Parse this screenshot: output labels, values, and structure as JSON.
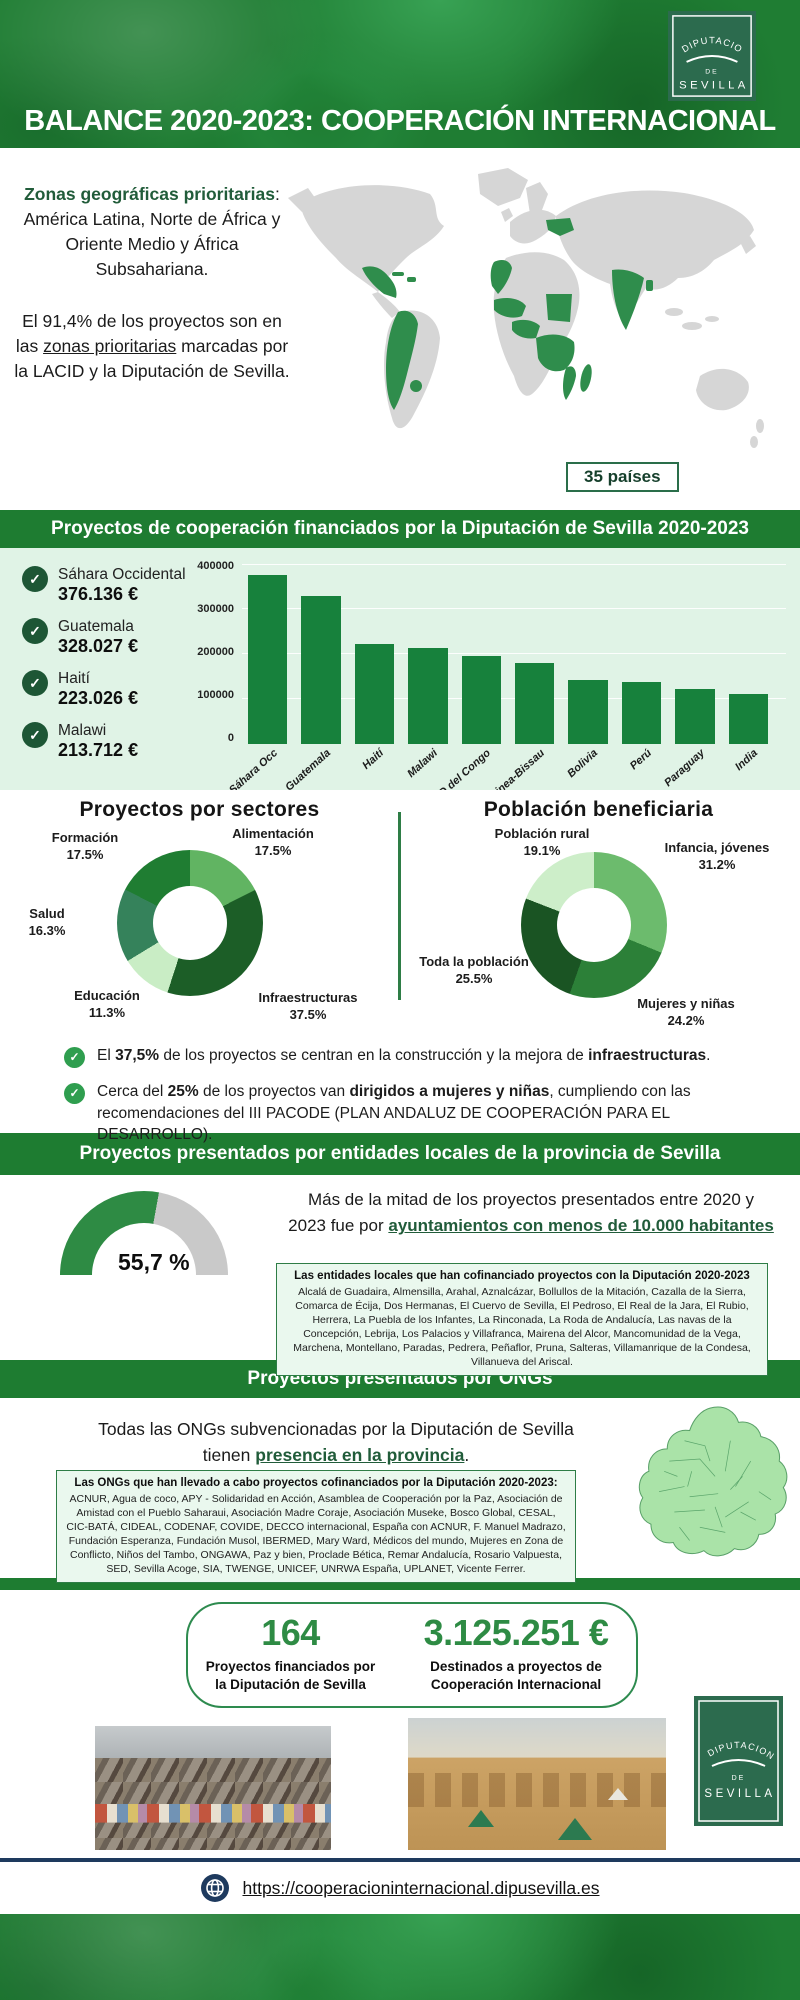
{
  "colors": {
    "accent": "#1e7c31",
    "accent_dark": "#1c5c3a",
    "text_green": "#215c3a",
    "mint": "#e0f3e6",
    "bar": "#17813c",
    "check_dark": "#1d5635",
    "check_bright": "#2f9e4f",
    "box_border": "#2e7d46",
    "box_bg": "#eaf8ee",
    "gauge": "#2e8b44",
    "gauge_track": "#c9c9c9",
    "navy": "#1e3a5e",
    "stat": "#2e8b44",
    "map_land": "#d6d6d6",
    "map_hl": "#2f8d4c",
    "logo_bg": "#2c6b4e"
  },
  "header": {
    "title": "BALANCE 2020-2023: COOPERACIÓN INTERNACIONAL",
    "logo": {
      "line1": "DIPUTACION",
      "line2": "DE",
      "line3": "SEVILLA"
    }
  },
  "map_section": {
    "paragraph1": [
      {
        "t": "Zonas geográficas prioritarias",
        "b": true,
        "g": true
      },
      {
        "t": ": América Latina, Norte de África y Oriente Medio y África Subsahariana."
      }
    ],
    "paragraph2": [
      {
        "t": "El 91,4% de los proyectos son en las "
      },
      {
        "t": "zonas prioritarias",
        "u": true
      },
      {
        "t": " marcadas por la LACID y la Diputación de Sevilla."
      }
    ],
    "badge": "35 países"
  },
  "sections": {
    "local_title": "Proyectos presentados por entidades locales de la provincia de Sevilla",
    "ongs_title": "Proyectos presentados por ONGs"
  },
  "funding": {
    "highlights": [
      {
        "country": "Sáhara Occidental",
        "amount": "376.136 €"
      },
      {
        "country": "Guatemala",
        "amount": "328.027 €"
      },
      {
        "country": "Haití",
        "amount": "223.026 €"
      },
      {
        "country": "Malawi",
        "amount": "213.712 €"
      }
    ]
  },
  "chart_data": [
    {
      "type": "bar",
      "title": "Proyectos de cooperación financiados por la Diputación de Sevilla 2020-2023",
      "categories": [
        "Sáhara Occ",
        "Guatemala",
        "Haití",
        "Malawi",
        "RD del Congo",
        "Guinea-Bissau",
        "Bolivia",
        "Perú",
        "Paraguay",
        "India"
      ],
      "values": [
        376136,
        328027,
        223026,
        213712,
        196000,
        181000,
        143000,
        137000,
        123000,
        111000
      ],
      "xlabel": "",
      "ylabel": "",
      "ylim": [
        0,
        400000
      ],
      "yticks": [
        400000,
        300000,
        200000,
        100000,
        0
      ],
      "grid": true,
      "bar_color": "#17813c"
    },
    {
      "type": "donut",
      "title": "Proyectos por sectores",
      "slices": [
        {
          "name": "Alimentación",
          "pct": "17.5%",
          "value": 17.5,
          "color": "#61b462"
        },
        {
          "name": "Infraestructuras",
          "pct": "37.5%",
          "value": 37.5,
          "color": "#1c5e27"
        },
        {
          "name": "Educación",
          "pct": "11.3%",
          "value": 11.3,
          "color": "#c9edc5"
        },
        {
          "name": "Salud",
          "pct": "16.3%",
          "value": 16.3,
          "color": "#35825b"
        },
        {
          "name": "Formación",
          "pct": "17.5%",
          "value": 17.5,
          "color": "#1f7d32"
        }
      ]
    },
    {
      "type": "donut",
      "title": "Población beneficiaria",
      "slices": [
        {
          "name": "Infancia, jóvenes",
          "pct": "31.2%",
          "value": 31.2,
          "color": "#6cbb6d"
        },
        {
          "name": "Mujeres y niñas",
          "pct": "24.2%",
          "value": 24.2,
          "color": "#2c8038"
        },
        {
          "name": "Toda la población",
          "pct": "25.5%",
          "value": 25.5,
          "color": "#1a5423"
        },
        {
          "name": "Población rural",
          "pct": "19.1%",
          "value": 19.1,
          "color": "#cdeec9"
        }
      ]
    },
    {
      "type": "gauge",
      "label": "55,7 %",
      "value": 55.7,
      "max": 100,
      "color": "#2e8b44",
      "track": "#c9c9c9"
    }
  ],
  "bullets": [
    [
      {
        "t": "El "
      },
      {
        "t": "37,5%",
        "b": true
      },
      {
        "t": " de los proyectos se centran en la construcción y la mejora de "
      },
      {
        "t": "infraestructuras",
        "b": true
      },
      {
        "t": "."
      }
    ],
    [
      {
        "t": "Cerca del "
      },
      {
        "t": "25%",
        "b": true
      },
      {
        "t": " de los proyectos van "
      },
      {
        "t": "dirigidos a mujeres y niñas",
        "b": true
      },
      {
        "t": ", cumpliendo con las recomendaciones del III PACODE (PLAN ANDALUZ DE COOPERACIÓN PARA EL DESARROLLO)."
      }
    ]
  ],
  "local": {
    "text": [
      {
        "t": "Más de la mitad de los proyectos presentados entre 2020 y 2023 fue por "
      },
      {
        "t": "ayuntamientos con menos de 10.000 habitantes",
        "b": true,
        "u": true,
        "g": true
      }
    ],
    "box_title": "Las entidades locales que han cofinanciado proyectos con la Diputación 2020-2023",
    "box_list": "Alcalá de Guadaira, Almensilla, Arahal, Aznalcázar, Bollullos de la Mitación, Cazalla de la Sierra, Comarca de Écija, Dos Hermanas, El Cuervo de Sevilla, El Pedroso, El Real de la Jara, El Rubio, Herrera, La Puebla de los Infantes, La Rinconada, La Roda de Andalucía, Las navas de la Concepción, Lebrija, Los Palacios y Villafranca, Mairena del Alcor, Mancomunidad de la Vega, Marchena, Montellano, Paradas, Pedrera, Peñaflor, Pruna, Salteras, Villamanrique de la Condesa, Villanueva del Ariscal."
  },
  "ongs": {
    "text": [
      {
        "t": "Todas las ONGs subvencionadas por la Diputación de Sevilla tienen "
      },
      {
        "t": "presencia en la provincia",
        "b": true,
        "u": true,
        "g": true
      },
      {
        "t": "."
      }
    ],
    "box_title": "Las ONGs que han llevado a cabo proyectos cofinanciados por la Diputación 2020-2023:",
    "box_list": "ACNUR, Agua de coco, APY - Solidaridad en Acción, Asamblea de Cooperación por la Paz, Asociación de Amistad con el Pueblo Saharaui, Asociación Madre Coraje, Asociación Museke, Bosco Global, CESAL, CIC-BATÁ, CIDEAL, CODENAF, COVIDE, DECCO internacional, España con ACNUR, F. Manuel Madrazo, Fundación Esperanza, Fundación Musol, IBERMED, Mary Ward, Médicos del mundo, Mujeres en Zona de Conflicto, Niños del Tambo, ONGAWA, Paz y bien, Proclade Bética, Remar Andalucía, Rosario Valpuesta, SED, Sevilla Acoge, SIA, TWENGE, UNICEF, UNRWA España, UPLANET, Vicente Ferrer."
  },
  "stats": {
    "projects_value": "164",
    "projects_label": "Proyectos financiados por la Diputación de Sevilla",
    "amount_value": "3.125.251 €",
    "amount_label": "Destinados a proyectos de Cooperación Internacional"
  },
  "footer": {
    "url": "https://cooperacioninternacional.dipusevilla.es"
  },
  "icons": {
    "check": "✓"
  }
}
